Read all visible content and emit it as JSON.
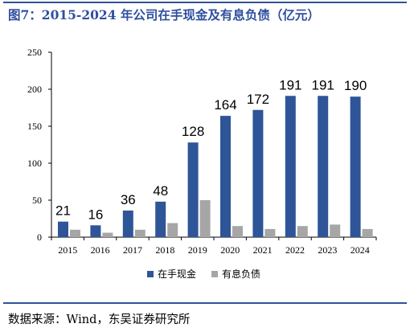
{
  "header": {
    "title": "图7：2015-2024 年公司在手现金及有息负债（亿元）"
  },
  "footer": {
    "source": "数据来源：Wind，东吴证券研究所"
  },
  "colors": {
    "rule": "#2f5597",
    "title": "#2f4f9f",
    "series_cash": "#2e5597",
    "series_debt": "#a6a6a6"
  },
  "chart_data": {
    "type": "bar",
    "title": "图7：2015-2024 年公司在手现金及有息负债（亿元）",
    "xlabel": "",
    "ylabel": "",
    "categories": [
      "2015",
      "2016",
      "2017",
      "2018",
      "2019",
      "2020",
      "2021",
      "2022",
      "2023",
      "2024"
    ],
    "series": [
      {
        "name": "在手现金",
        "values": [
          21,
          16,
          36,
          48,
          128,
          164,
          172,
          191,
          191,
          190
        ],
        "color": "#2e5597"
      },
      {
        "name": "有息负债",
        "values": [
          10,
          6,
          10,
          19,
          50,
          15,
          11,
          15,
          17,
          11
        ],
        "color": "#a6a6a6"
      }
    ],
    "data_labels": [
      "21",
      "16",
      "36",
      "48",
      "128",
      "164",
      "172",
      "191",
      "191",
      "190"
    ],
    "ylim": [
      0,
      250
    ],
    "yticks": [
      "0",
      "50",
      "100",
      "150",
      "200",
      "250"
    ],
    "grid": false,
    "legend_position": "bottom-center"
  }
}
